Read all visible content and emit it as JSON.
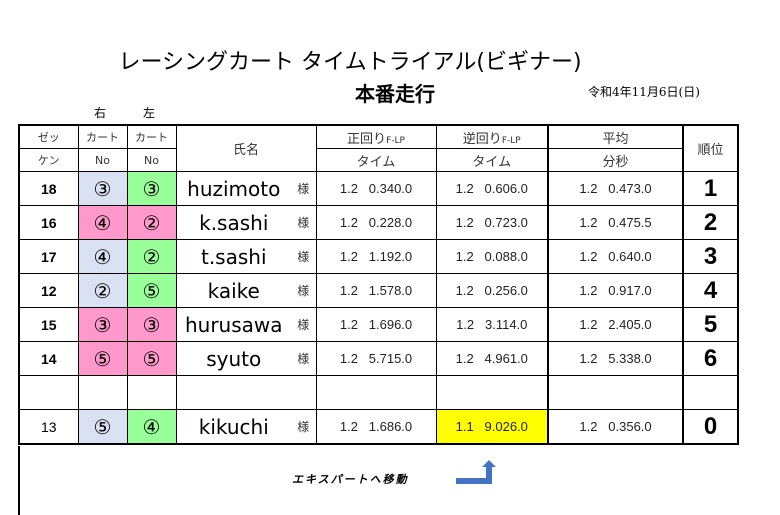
{
  "title": "レーシングカート タイムトライアル(ビギナー)",
  "subtitle": "本番走行",
  "date": "令和4年11月6日(日)",
  "side_right": "右",
  "side_left": "左",
  "headers": {
    "zekken_1": "ゼッ",
    "zekken_2": "ケン",
    "kart_1": "カート",
    "kart_no": "No",
    "name": "氏名",
    "forward": "正回り",
    "forward_sub": "F-LP",
    "forward_time": "タイム",
    "reverse": "逆回り",
    "reverse_sub": "F-LP",
    "reverse_time": "タイム",
    "avg": "平均",
    "avg_unit": "分秒",
    "rank": "順位"
  },
  "colors": {
    "blue": "#d9e1f2",
    "pink": "#ff99cc",
    "green": "#99ff99",
    "highlight": "#ffff00",
    "arrow": "#4472c4"
  },
  "rows": [
    {
      "zekken": "18",
      "right": "③",
      "right_color": "blue",
      "left": "③",
      "left_color": "green",
      "name": "huzimoto",
      "honorific": "様",
      "forward": "1.2   0.340.0",
      "reverse": "1.2   0.606.0",
      "avg": "1.2   0.473.0",
      "rank": "1"
    },
    {
      "zekken": "16",
      "right": "④",
      "right_color": "pink",
      "left": "②",
      "left_color": "pink",
      "name": "k.sashi",
      "honorific": "様",
      "forward": "1.2   0.228.0",
      "reverse": "1.2   0.723.0",
      "avg": "1.2   0.475.5",
      "rank": "2"
    },
    {
      "zekken": "17",
      "right": "④",
      "right_color": "blue",
      "left": "②",
      "left_color": "green",
      "name": "t.sashi",
      "honorific": "様",
      "forward": "1.2   1.192.0",
      "reverse": "1.2   0.088.0",
      "avg": "1.2   0.640.0",
      "rank": "3"
    },
    {
      "zekken": "12",
      "right": "②",
      "right_color": "blue",
      "left": "⑤",
      "left_color": "green",
      "name": "kaike",
      "honorific": "様",
      "forward": "1.2   1.578.0",
      "reverse": "1.2   0.256.0",
      "avg": "1.2   0.917.0",
      "rank": "4"
    },
    {
      "zekken": "15",
      "right": "③",
      "right_color": "pink",
      "left": "③",
      "left_color": "pink",
      "name": "hurusawa",
      "honorific": "様",
      "forward": "1.2   1.696.0",
      "reverse": "1.2   3.114.0",
      "avg": "1.2   2.405.0",
      "rank": "5"
    },
    {
      "zekken": "14",
      "right": "⑤",
      "right_color": "pink",
      "left": "⑤",
      "left_color": "pink",
      "name": "syuto",
      "honorific": "様",
      "forward": "1.2   5.715.0",
      "reverse": "1.2   4.961.0",
      "avg": "1.2   5.338.0",
      "rank": "6"
    },
    {
      "blank": true
    },
    {
      "zekken": "13",
      "right": "⑤",
      "right_color": "blue",
      "left": "④",
      "left_color": "green",
      "name": "kikuchi",
      "honorific": "様",
      "forward": "1.2   1.686.0",
      "reverse": "1.1   9.026.0",
      "reverse_highlight": true,
      "avg": "1.2   0.356.0",
      "rank": "0"
    }
  ],
  "link_label": "エキスパートへ移動",
  "arrow_icon": "turn-up-arrow-icon"
}
